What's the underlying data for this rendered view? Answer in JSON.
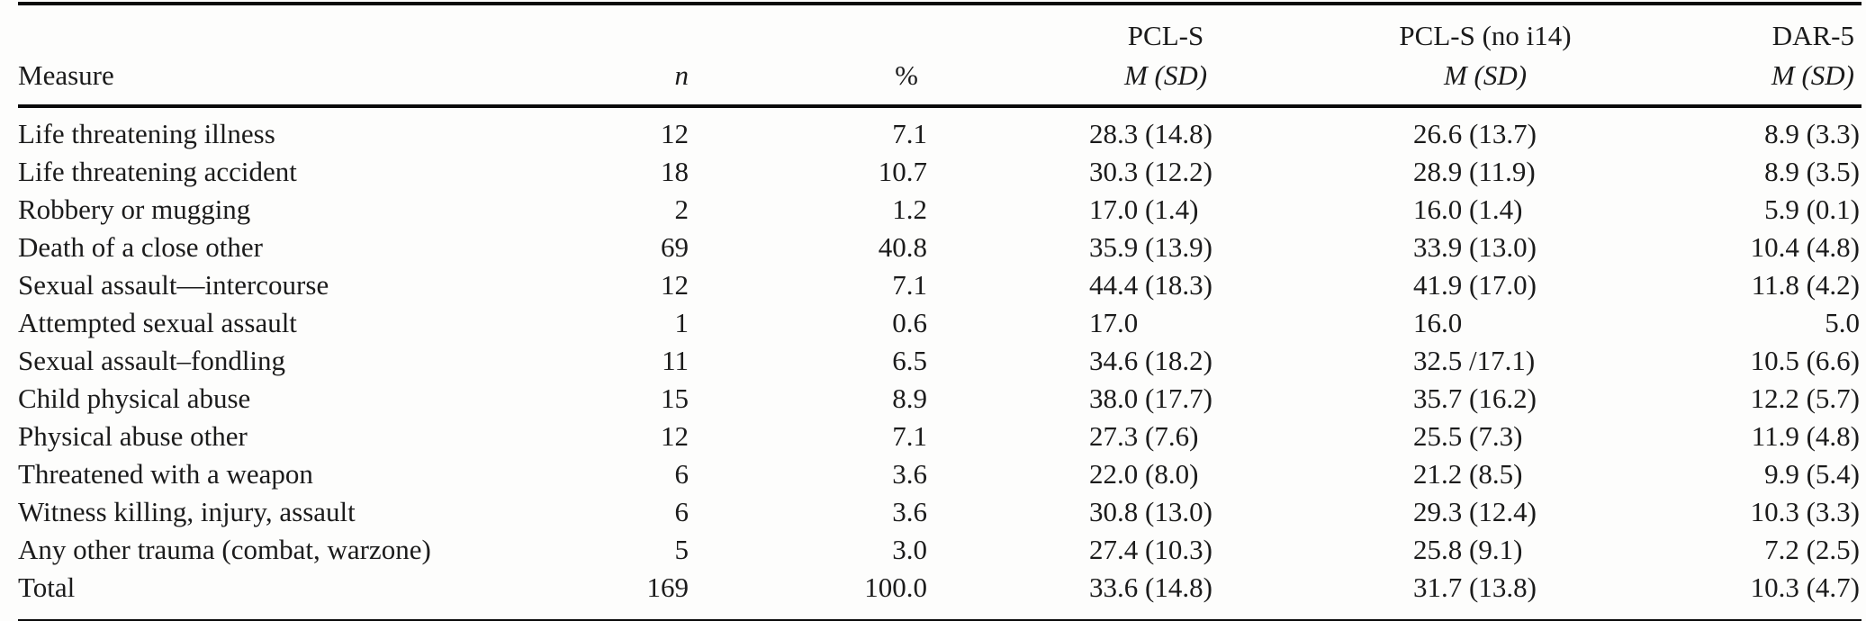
{
  "colors": {
    "text": "#1b1b1b",
    "rule": "#0a0a0a",
    "background": "#fdfdfc"
  },
  "table": {
    "columns": [
      {
        "key": "measure",
        "label": "Measure",
        "sub": ""
      },
      {
        "key": "n",
        "label": "n",
        "sub": ""
      },
      {
        "key": "pct",
        "label": "%",
        "sub": ""
      },
      {
        "key": "pcls",
        "label": "PCL-S",
        "sub": "M (SD)"
      },
      {
        "key": "pcls-no-i14",
        "label": "PCL-S (no i14)",
        "sub": "M (SD)"
      },
      {
        "key": "dar5",
        "label": "DAR-5",
        "sub": "M (SD)"
      }
    ],
    "rows": [
      [
        "Life threatening illness",
        "12",
        "7.1",
        "28.3 (14.8)",
        "26.6 (13.7)",
        "8.9 (3.3)"
      ],
      [
        "Life threatening accident",
        "18",
        "10.7",
        "30.3 (12.2)",
        "28.9 (11.9)",
        "8.9 (3.5)"
      ],
      [
        "Robbery or mugging",
        "2",
        "1.2",
        "17.0 (1.4)",
        "16.0 (1.4)",
        "5.9 (0.1)"
      ],
      [
        "Death of a close other",
        "69",
        "40.8",
        "35.9 (13.9)",
        "33.9 (13.0)",
        "10.4 (4.8)"
      ],
      [
        "Sexual assault—intercourse",
        "12",
        "7.1",
        "44.4 (18.3)",
        "41.9 (17.0)",
        "11.8 (4.2)"
      ],
      [
        "Attempted sexual assault",
        "1",
        "0.6",
        "17.0",
        "16.0",
        "5.0"
      ],
      [
        "Sexual assault–fondling",
        "11",
        "6.5",
        "34.6 (18.2)",
        "32.5 /17.1)",
        "10.5 (6.6)"
      ],
      [
        "Child physical abuse",
        "15",
        "8.9",
        "38.0 (17.7)",
        "35.7 (16.2)",
        "12.2 (5.7)"
      ],
      [
        "Physical abuse other",
        "12",
        "7.1",
        "27.3 (7.6)",
        "25.5 (7.3)",
        "11.9 (4.8)"
      ],
      [
        "Threatened with a weapon",
        "6",
        "3.6",
        "22.0 (8.0)",
        "21.2 (8.5)",
        "9.9 (5.4)"
      ],
      [
        "Witness killing, injury, assault",
        "6",
        "3.6",
        "30.8 (13.0)",
        "29.3 (12.4)",
        "10.3 (3.3)"
      ],
      [
        "Any other trauma (combat, warzone)",
        "5",
        "3.0",
        "27.4 (10.3)",
        "25.8 (9.1)",
        "7.2 (2.5)"
      ],
      [
        "Total",
        "169",
        "100.0",
        "33.6 (14.8)",
        "31.7 (13.8)",
        "10.3 (4.7)"
      ]
    ]
  }
}
